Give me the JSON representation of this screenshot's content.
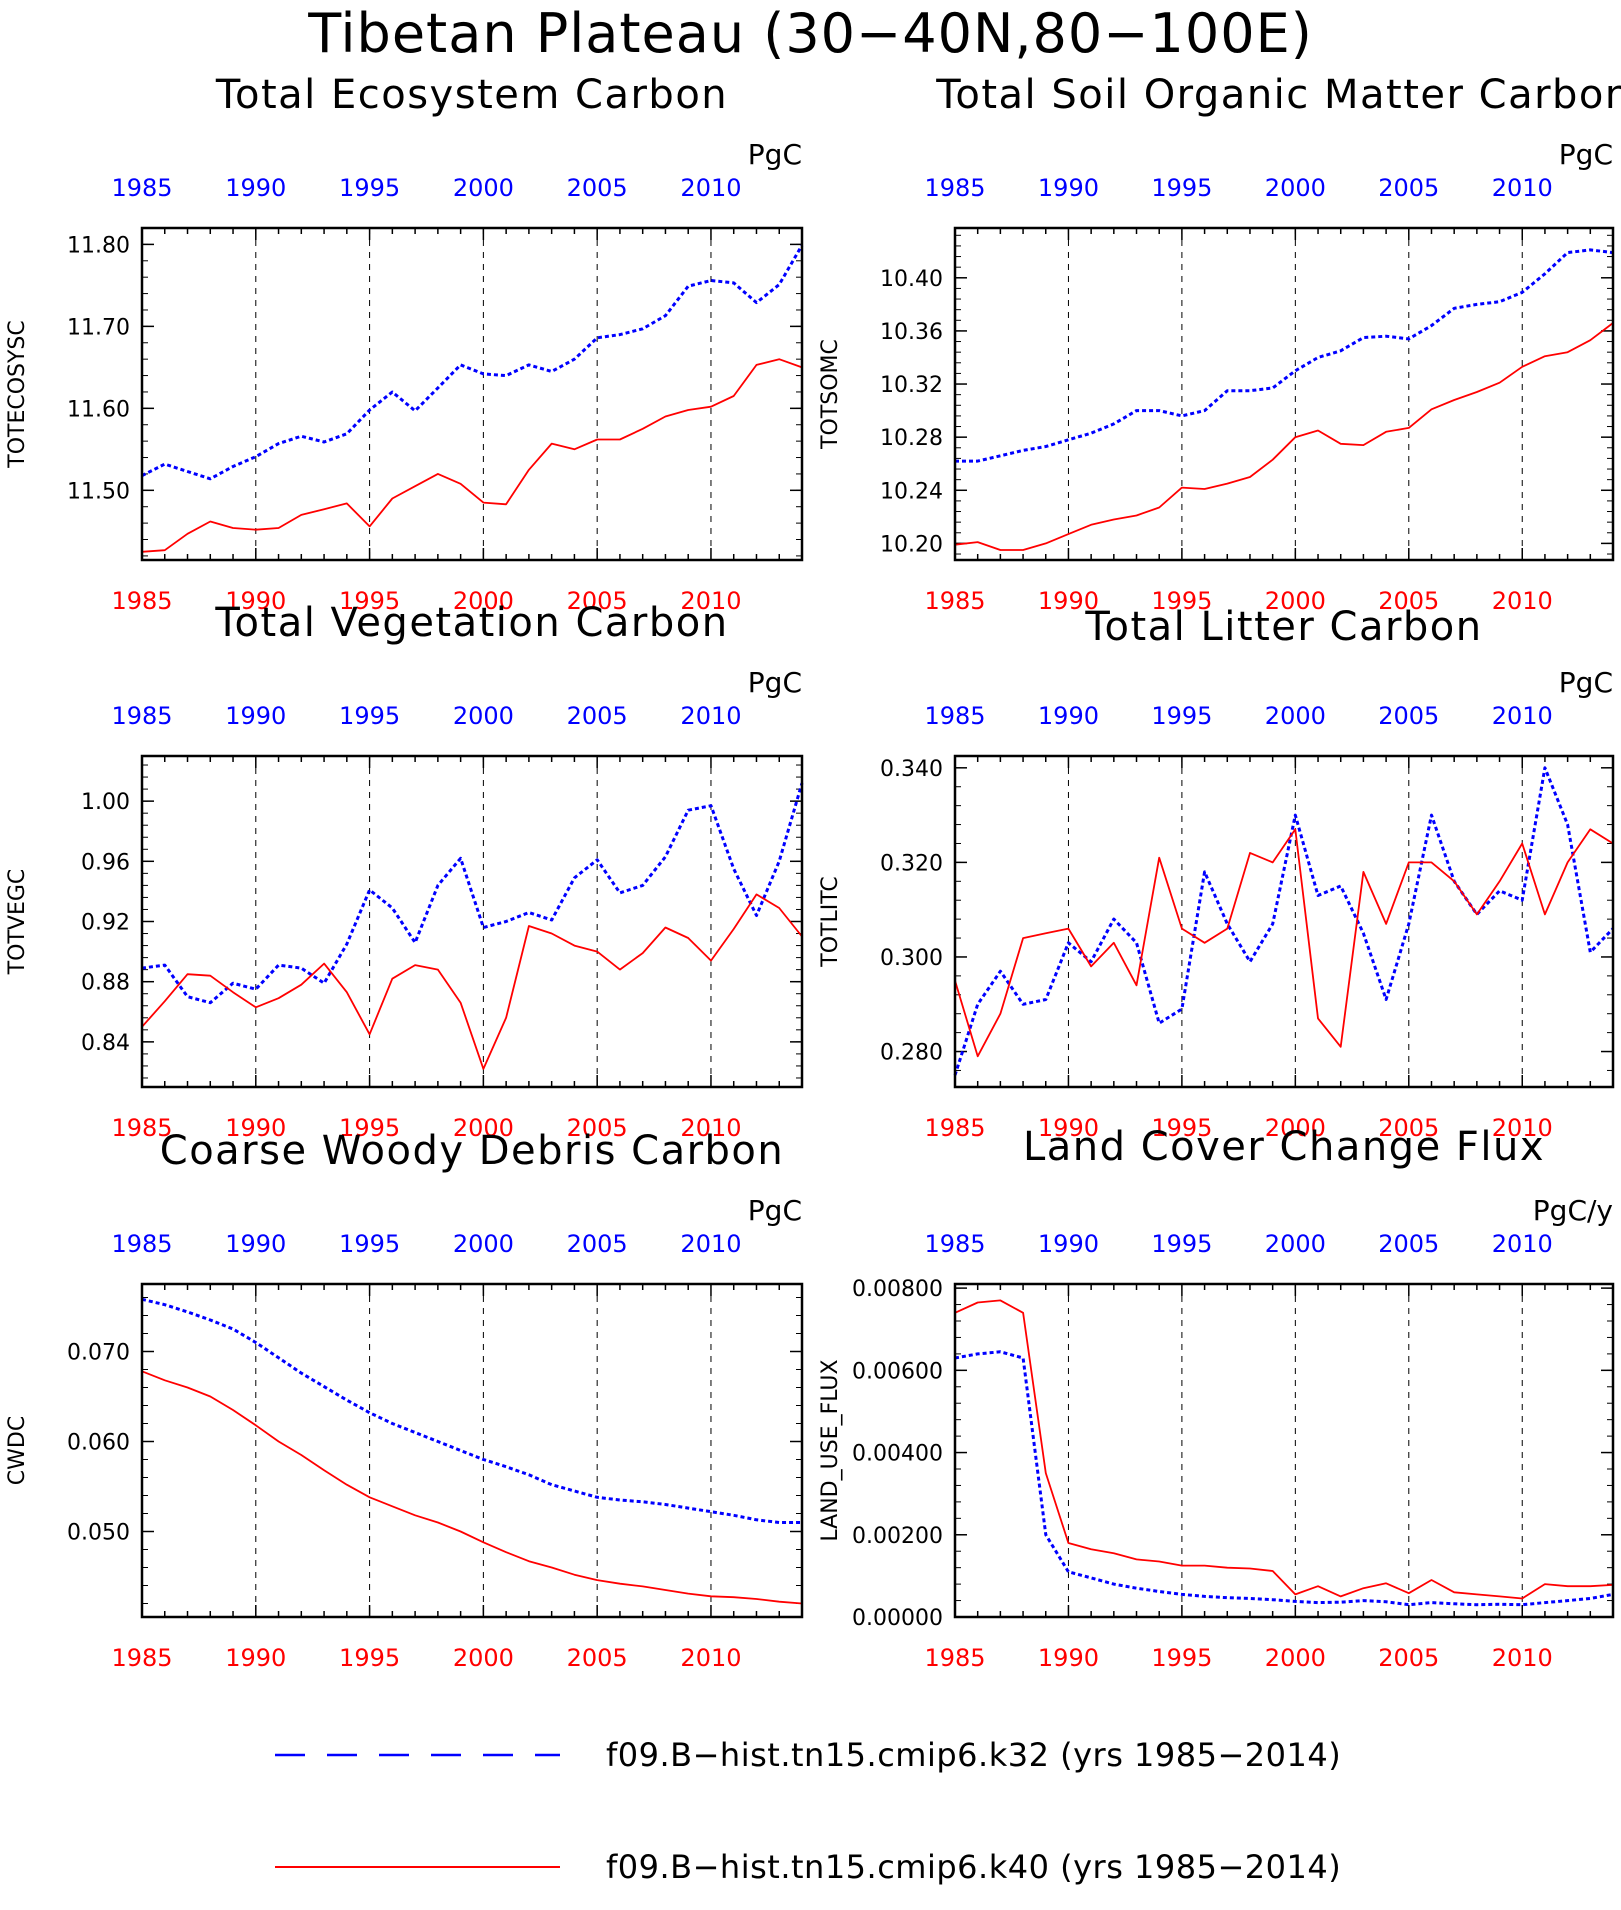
{
  "figure": {
    "title": "Tibetan Plateau (30−40N,80−100E)",
    "legend": [
      {
        "label": "f09.B−hist.tn15.cmip6.k32 (yrs 1985−2014)",
        "color": "#0000ff",
        "style": "dashed"
      },
      {
        "label": "f09.B−hist.tn15.cmip6.k40 (yrs 1985−2014)",
        "color": "#ff0000",
        "style": "solid"
      }
    ]
  },
  "chart_data": [
    {
      "type": "line",
      "title": "Total Ecosystem Carbon",
      "ylabel": "TOTECOSYSC",
      "unit": "PgC",
      "xlim": [
        1985,
        2014
      ],
      "ylim": [
        11.415,
        11.82
      ],
      "yticks": [
        11.5,
        11.6,
        11.7,
        11.8
      ],
      "ytick_labels": [
        "11.50",
        "11.60",
        "11.70",
        "11.80"
      ],
      "xticks": [
        1985,
        1990,
        1995,
        2000,
        2005,
        2010
      ],
      "x": [
        1985,
        1986,
        1987,
        1988,
        1989,
        1990,
        1991,
        1992,
        1993,
        1994,
        1995,
        1996,
        1997,
        1998,
        1999,
        2000,
        2001,
        2002,
        2003,
        2004,
        2005,
        2006,
        2007,
        2008,
        2009,
        2010,
        2011,
        2012,
        2013,
        2014
      ],
      "series": [
        {
          "name": "f09.B−hist.tn15.cmip6.k32",
          "color": "#0000ff",
          "dashed": true,
          "values": [
            11.518,
            11.532,
            11.523,
            11.514,
            11.529,
            11.541,
            11.557,
            11.566,
            11.559,
            11.569,
            11.598,
            11.62,
            11.597,
            11.625,
            11.653,
            11.642,
            11.64,
            11.653,
            11.645,
            11.66,
            11.686,
            11.69,
            11.697,
            11.713,
            11.749,
            11.756,
            11.753,
            11.729,
            11.751,
            11.799
          ]
        },
        {
          "name": "f09.B−hist.tn15.cmip6.k40",
          "color": "#ff0000",
          "dashed": false,
          "values": [
            11.425,
            11.427,
            11.447,
            11.462,
            11.454,
            11.452,
            11.454,
            11.47,
            11.477,
            11.484,
            11.456,
            11.49,
            11.505,
            11.52,
            11.508,
            11.485,
            11.483,
            11.525,
            11.557,
            11.55,
            11.562,
            11.562,
            11.575,
            11.59,
            11.598,
            11.602,
            11.615,
            11.653,
            11.66,
            11.65
          ]
        }
      ]
    },
    {
      "type": "line",
      "title": "Total Soil Organic Matter Carbon",
      "ylabel": "TOTSOMC",
      "unit": "PgC",
      "xlim": [
        1985,
        2014
      ],
      "ylim": [
        10.1875,
        10.4375
      ],
      "yticks": [
        10.2,
        10.24,
        10.28,
        10.32,
        10.36,
        10.4
      ],
      "ytick_labels": [
        "10.20",
        "10.24",
        "10.28",
        "10.32",
        "10.36",
        "10.40"
      ],
      "xticks": [
        1985,
        1990,
        1995,
        2000,
        2005,
        2010
      ],
      "x": [
        1985,
        1986,
        1987,
        1988,
        1989,
        1990,
        1991,
        1992,
        1993,
        1994,
        1995,
        1996,
        1997,
        1998,
        1999,
        2000,
        2001,
        2002,
        2003,
        2004,
        2005,
        2006,
        2007,
        2008,
        2009,
        2010,
        2011,
        2012,
        2013,
        2014
      ],
      "series": [
        {
          "name": "f09.B−hist.tn15.cmip6.k32",
          "color": "#0000ff",
          "dashed": true,
          "values": [
            10.262,
            10.262,
            10.266,
            10.27,
            10.273,
            10.278,
            10.283,
            10.29,
            10.3,
            10.3,
            10.296,
            10.3,
            10.315,
            10.315,
            10.317,
            10.33,
            10.34,
            10.345,
            10.355,
            10.356,
            10.354,
            10.364,
            10.377,
            10.38,
            10.382,
            10.389,
            10.403,
            10.419,
            10.421,
            10.419
          ]
        },
        {
          "name": "f09.B−hist.tn15.cmip6.k40",
          "color": "#ff0000",
          "dashed": false,
          "values": [
            10.199,
            10.201,
            10.195,
            10.195,
            10.2,
            10.207,
            10.214,
            10.218,
            10.221,
            10.227,
            10.242,
            10.241,
            10.245,
            10.25,
            10.263,
            10.28,
            10.285,
            10.275,
            10.274,
            10.284,
            10.287,
            10.301,
            10.308,
            10.314,
            10.321,
            10.333,
            10.341,
            10.344,
            10.353,
            10.366
          ]
        }
      ]
    },
    {
      "type": "line",
      "title": "Total Vegetation Carbon",
      "ylabel": "TOTVEGC",
      "unit": "PgC",
      "xlim": [
        1985,
        2014
      ],
      "ylim": [
        0.81,
        1.03
      ],
      "yticks": [
        0.84,
        0.88,
        0.92,
        0.96,
        1.0
      ],
      "ytick_labels": [
        "0.84",
        "0.88",
        "0.92",
        "0.96",
        "1.00"
      ],
      "xticks": [
        1985,
        1990,
        1995,
        2000,
        2005,
        2010
      ],
      "x": [
        1985,
        1986,
        1987,
        1988,
        1989,
        1990,
        1991,
        1992,
        1993,
        1994,
        1995,
        1996,
        1997,
        1998,
        1999,
        2000,
        2001,
        2002,
        2003,
        2004,
        2005,
        2006,
        2007,
        2008,
        2009,
        2010,
        2011,
        2012,
        2013,
        2014
      ],
      "series": [
        {
          "name": "f09.B−hist.tn15.cmip6.k32",
          "color": "#0000ff",
          "dashed": true,
          "values": [
            0.889,
            0.891,
            0.87,
            0.866,
            0.879,
            0.875,
            0.891,
            0.889,
            0.879,
            0.905,
            0.941,
            0.929,
            0.906,
            0.944,
            0.962,
            0.916,
            0.92,
            0.926,
            0.921,
            0.949,
            0.961,
            0.939,
            0.944,
            0.963,
            0.994,
            0.997,
            0.955,
            0.924,
            0.96,
            1.012
          ]
        },
        {
          "name": "f09.B−hist.tn15.cmip6.k40",
          "color": "#ff0000",
          "dashed": false,
          "values": [
            0.85,
            0.867,
            0.885,
            0.884,
            0.873,
            0.863,
            0.869,
            0.878,
            0.892,
            0.873,
            0.845,
            0.882,
            0.891,
            0.888,
            0.866,
            0.822,
            0.856,
            0.917,
            0.912,
            0.904,
            0.9,
            0.888,
            0.899,
            0.916,
            0.909,
            0.894,
            0.915,
            0.938,
            0.929,
            0.91
          ]
        }
      ]
    },
    {
      "type": "line",
      "title": "Total Litter Carbon",
      "ylabel": "TOTLITC",
      "unit": "PgC",
      "xlim": [
        1985,
        2014
      ],
      "ylim": [
        0.2725,
        0.3425
      ],
      "yticks": [
        0.28,
        0.3,
        0.32,
        0.34
      ],
      "ytick_labels": [
        "0.280",
        "0.300",
        "0.320",
        "0.340"
      ],
      "xticks": [
        1985,
        1990,
        1995,
        2000,
        2005,
        2010
      ],
      "x": [
        1985,
        1986,
        1987,
        1988,
        1989,
        1990,
        1991,
        1992,
        1993,
        1994,
        1995,
        1996,
        1997,
        1998,
        1999,
        2000,
        2001,
        2002,
        2003,
        2004,
        2005,
        2006,
        2007,
        2008,
        2009,
        2010,
        2011,
        2012,
        2013,
        2014
      ],
      "series": [
        {
          "name": "f09.B−hist.tn15.cmip6.k32",
          "color": "#0000ff",
          "dashed": true,
          "values": [
            0.275,
            0.29,
            0.297,
            0.29,
            0.291,
            0.303,
            0.299,
            0.308,
            0.303,
            0.286,
            0.289,
            0.318,
            0.307,
            0.299,
            0.307,
            0.33,
            0.313,
            0.315,
            0.305,
            0.291,
            0.307,
            0.33,
            0.316,
            0.309,
            0.314,
            0.312,
            0.34,
            0.328,
            0.301,
            0.306
          ]
        },
        {
          "name": "f09.B−hist.tn15.cmip6.k40",
          "color": "#ff0000",
          "dashed": false,
          "values": [
            0.295,
            0.279,
            0.288,
            0.304,
            0.305,
            0.306,
            0.298,
            0.303,
            0.294,
            0.321,
            0.306,
            0.303,
            0.306,
            0.322,
            0.32,
            0.327,
            0.287,
            0.281,
            0.318,
            0.307,
            0.32,
            0.32,
            0.316,
            0.309,
            0.316,
            0.324,
            0.309,
            0.32,
            0.327,
            0.324
          ]
        }
      ]
    },
    {
      "type": "line",
      "title": "Coarse Woody Debris Carbon",
      "ylabel": "CWDC",
      "unit": "PgC",
      "xlim": [
        1985,
        2014
      ],
      "ylim": [
        0.0405,
        0.0775
      ],
      "yticks": [
        0.05,
        0.06,
        0.07
      ],
      "ytick_labels": [
        "0.050",
        "0.060",
        "0.070"
      ],
      "xticks": [
        1985,
        1990,
        1995,
        2000,
        2005,
        2010
      ],
      "x": [
        1985,
        1986,
        1987,
        1988,
        1989,
        1990,
        1991,
        1992,
        1993,
        1994,
        1995,
        1996,
        1997,
        1998,
        1999,
        2000,
        2001,
        2002,
        2003,
        2004,
        2005,
        2006,
        2007,
        2008,
        2009,
        2010,
        2011,
        2012,
        2013,
        2014
      ],
      "series": [
        {
          "name": "f09.B−hist.tn15.cmip6.k32",
          "color": "#0000ff",
          "dashed": true,
          "values": [
            0.0758,
            0.0752,
            0.0744,
            0.0735,
            0.0725,
            0.071,
            0.0693,
            0.0676,
            0.0661,
            0.0646,
            0.0632,
            0.062,
            0.061,
            0.06,
            0.059,
            0.058,
            0.0572,
            0.0563,
            0.0552,
            0.0545,
            0.0538,
            0.0535,
            0.0533,
            0.053,
            0.0526,
            0.0522,
            0.0518,
            0.0513,
            0.051,
            0.051
          ]
        },
        {
          "name": "f09.B−hist.tn15.cmip6.k40",
          "color": "#ff0000",
          "dashed": false,
          "values": [
            0.0678,
            0.0668,
            0.066,
            0.065,
            0.0635,
            0.0618,
            0.06,
            0.0585,
            0.0568,
            0.0552,
            0.0538,
            0.0528,
            0.0518,
            0.051,
            0.05,
            0.0488,
            0.0477,
            0.0467,
            0.046,
            0.0452,
            0.0446,
            0.0442,
            0.0439,
            0.0435,
            0.0431,
            0.0428,
            0.0427,
            0.0425,
            0.0422,
            0.042
          ]
        }
      ]
    },
    {
      "type": "line",
      "title": "Land Cover Change Flux",
      "ylabel": "LAND_USE_FLUX",
      "unit": "PgC/y",
      "xlim": [
        1985,
        2014
      ],
      "ylim": [
        0.0,
        0.0081
      ],
      "yticks": [
        0.0,
        0.002,
        0.004,
        0.006,
        0.008
      ],
      "ytick_labels": [
        "0.00000",
        "0.00200",
        "0.00400",
        "0.00600",
        "0.00800"
      ],
      "xticks": [
        1985,
        1990,
        1995,
        2000,
        2005,
        2010
      ],
      "x": [
        1985,
        1986,
        1987,
        1988,
        1989,
        1990,
        1991,
        1992,
        1993,
        1994,
        1995,
        1996,
        1997,
        1998,
        1999,
        2000,
        2001,
        2002,
        2003,
        2004,
        2005,
        2006,
        2007,
        2008,
        2009,
        2010,
        2011,
        2012,
        2013,
        2014
      ],
      "series": [
        {
          "name": "f09.B−hist.tn15.cmip6.k32",
          "color": "#0000ff",
          "dashed": true,
          "values": [
            0.0063,
            0.0064,
            0.00645,
            0.0063,
            0.002,
            0.0011,
            0.00095,
            0.0008,
            0.0007,
            0.00062,
            0.00055,
            0.0005,
            0.00047,
            0.00045,
            0.00042,
            0.00038,
            0.00035,
            0.00036,
            0.0004,
            0.00037,
            0.0003,
            0.00035,
            0.00032,
            0.0003,
            0.00031,
            0.0003,
            0.00035,
            0.0004,
            0.00045,
            0.00055
          ]
        },
        {
          "name": "f09.B−hist.tn15.cmip6.k40",
          "color": "#ff0000",
          "dashed": false,
          "values": [
            0.0074,
            0.00765,
            0.0077,
            0.0074,
            0.0035,
            0.0018,
            0.00165,
            0.00155,
            0.0014,
            0.00135,
            0.00125,
            0.00125,
            0.0012,
            0.00118,
            0.00112,
            0.00055,
            0.00075,
            0.0005,
            0.0007,
            0.00082,
            0.00058,
            0.0009,
            0.0006,
            0.00055,
            0.0005,
            0.00045,
            0.0008,
            0.00075,
            0.00075,
            0.00078
          ]
        }
      ]
    }
  ]
}
